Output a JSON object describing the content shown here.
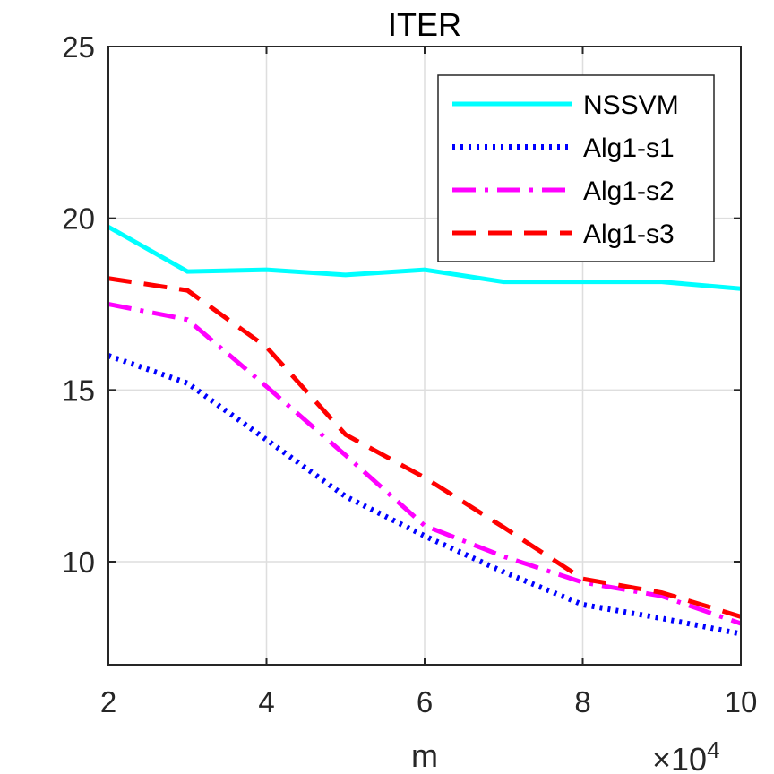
{
  "chart_data": {
    "type": "line",
    "title": "ITER",
    "xlabel": "m",
    "ylabel": "",
    "x_exponent_label": "×10",
    "x_exponent_power": "4",
    "x": [
      2,
      3,
      4,
      5,
      6,
      7,
      8,
      9,
      10
    ],
    "xlim": [
      2,
      10
    ],
    "ylim": [
      7,
      25
    ],
    "xticks": [
      2,
      4,
      6,
      8,
      10
    ],
    "yticks": [
      10,
      15,
      20,
      25
    ],
    "grid": true,
    "legend_position": "top-right",
    "series": [
      {
        "name": "NSSVM",
        "color": "#00FFFF",
        "style": "solid",
        "values": [
          19.75,
          18.45,
          18.5,
          18.35,
          18.5,
          18.15,
          18.15,
          18.15,
          17.95
        ]
      },
      {
        "name": "Alg1-s1",
        "color": "#0000FF",
        "style": "dotted",
        "values": [
          16.0,
          15.2,
          13.55,
          11.9,
          10.75,
          9.7,
          8.75,
          8.35,
          7.9
        ]
      },
      {
        "name": "Alg1-s2",
        "color": "#FF00FF",
        "style": "dashdot",
        "values": [
          17.5,
          17.05,
          15.1,
          13.1,
          11.05,
          10.15,
          9.4,
          9.0,
          8.2
        ]
      },
      {
        "name": "Alg1-s3",
        "color": "#FF0000",
        "style": "dashed",
        "values": [
          18.25,
          17.9,
          16.25,
          13.7,
          12.45,
          11.0,
          9.5,
          9.1,
          8.4
        ]
      }
    ]
  }
}
